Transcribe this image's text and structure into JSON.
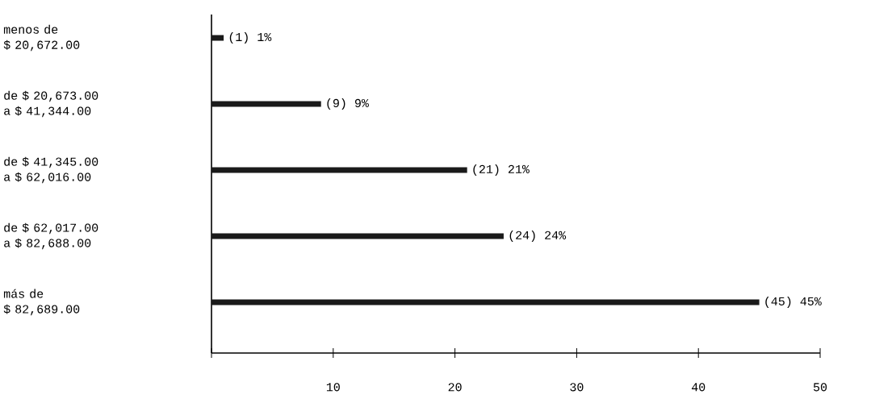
{
  "chart_data": {
    "type": "bar",
    "orientation": "horizontal",
    "categories": [
      "menos de\n$ 20,672.00",
      "de $ 20,673.00\na  $ 41,344.00",
      "de $ 41,345.00\na  $ 62,016.00",
      "de $ 62,017.00\na  $ 82,688.00",
      "más de\n $ 82,689.00"
    ],
    "values": [
      1,
      9,
      21,
      24,
      45
    ],
    "color": "#1a1a1a",
    "value_labels": [
      "(1) 1%",
      "(9) 9%",
      "(21) 21%",
      "(24) 24%",
      "(45) 45%"
    ],
    "xlim": [
      0,
      50
    ],
    "xticks": [
      {
        "value": 0,
        "label": null
      },
      10,
      20,
      30,
      40,
      50
    ]
  }
}
